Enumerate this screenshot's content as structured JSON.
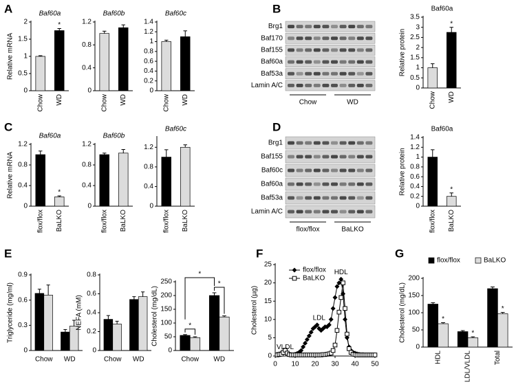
{
  "panel_labels": [
    "A",
    "B",
    "C",
    "D",
    "E",
    "F",
    "G"
  ],
  "blots": [
    {
      "rows": [
        "Brg1",
        "Baf170",
        "Baf155",
        "Baf60a",
        "Baf53a",
        "Lamin A/C"
      ],
      "groups": [
        "Chow",
        "WD"
      ]
    },
    {
      "rows": [
        "Brg1",
        "Baf155",
        "Baf60c",
        "Baf60a",
        "Baf53a",
        "Lamin A/C"
      ],
      "groups": [
        "flox/flox",
        "BaLKO"
      ]
    }
  ],
  "chart_data": [
    {
      "type": "bar",
      "title": "Baf60a",
      "ylabel": "Relative mRNA",
      "categories": [
        "Chow",
        "WD"
      ],
      "values": [
        1.0,
        1.75
      ],
      "errors": [
        0.02,
        0.06
      ],
      "colors": [
        "#dcdcdc",
        "#000000"
      ],
      "stars": [
        null,
        "*"
      ],
      "ylim": [
        0,
        2
      ],
      "yticks": [
        0,
        0.5,
        1,
        1.5,
        2
      ]
    },
    {
      "type": "bar",
      "title": "Baf60b",
      "categories": [
        "Chow",
        "WD"
      ],
      "values": [
        1.0,
        1.1
      ],
      "errors": [
        0.04,
        0.05
      ],
      "colors": [
        "#dcdcdc",
        "#000000"
      ],
      "ylim": [
        0,
        1.2
      ],
      "yticks": [
        0,
        0.4,
        0.8,
        1.2
      ]
    },
    {
      "type": "bar",
      "title": "Baf60c",
      "categories": [
        "Chow",
        "WD"
      ],
      "values": [
        1.0,
        1.1
      ],
      "errors": [
        0.03,
        0.12
      ],
      "colors": [
        "#dcdcdc",
        "#000000"
      ],
      "ylim": [
        0,
        1.4
      ],
      "yticks": [
        0,
        0.2,
        0.4,
        0.6,
        0.8,
        1,
        1.2,
        1.4
      ]
    },
    {
      "type": "bar",
      "title": "Baf60a",
      "ylabel": "Relative protein",
      "categories": [
        "Chow",
        "WD"
      ],
      "values": [
        1.0,
        2.75
      ],
      "errors": [
        0.2,
        0.25
      ],
      "colors": [
        "#dcdcdc",
        "#000000"
      ],
      "stars": [
        null,
        "*"
      ],
      "ylim": [
        0,
        3.5
      ],
      "yticks": [
        0,
        0.5,
        1,
        1.5,
        2,
        2.5,
        3,
        3.5
      ]
    },
    {
      "type": "bar",
      "title": "Baf60a",
      "ylabel": "Relative mRNA",
      "categories": [
        "flox/flox",
        "BaLKO"
      ],
      "values": [
        1.0,
        0.18
      ],
      "errors": [
        0.07,
        0.02
      ],
      "colors": [
        "#000000",
        "#dcdcdc"
      ],
      "stars": [
        null,
        "*"
      ],
      "ylim": [
        0,
        1.2
      ],
      "yticks": [
        0,
        0.4,
        0.8,
        1.2
      ]
    },
    {
      "type": "bar",
      "title": "Baf60b",
      "categories": [
        "flox/flox",
        "BaLKO"
      ],
      "values": [
        1.0,
        1.03
      ],
      "errors": [
        0.03,
        0.07
      ],
      "colors": [
        "#000000",
        "#dcdcdc"
      ],
      "ylim": [
        0,
        1.2
      ],
      "yticks": [
        0,
        0.4,
        0.8,
        1.2
      ]
    },
    {
      "type": "bar",
      "title": "Baf60c",
      "categories": [
        "flox/flox",
        "BaLKO"
      ],
      "values": [
        1.0,
        1.2
      ],
      "errors": [
        0.15,
        0.05
      ],
      "colors": [
        "#000000",
        "#dcdcdc"
      ],
      "ylim": [
        0,
        1.4
      ],
      "yticks": [
        0,
        0.4,
        0.8,
        1.2
      ]
    },
    {
      "type": "bar",
      "title": "Baf60a",
      "ylabel": "Relative protein",
      "categories": [
        "flox/flox",
        "BaLKO"
      ],
      "values": [
        1.0,
        0.2
      ],
      "errors": [
        0.15,
        0.07
      ],
      "colors": [
        "#000000",
        "#dcdcdc"
      ],
      "stars": [
        null,
        "*"
      ],
      "ylim": [
        0,
        1.4
      ],
      "yticks": [
        0,
        0.2,
        0.4,
        0.6,
        0.8,
        1,
        1.2,
        1.4
      ]
    },
    {
      "type": "bar",
      "ylabel": "Triglyceride (mg/ml)",
      "categories": [
        "Chow",
        "WD"
      ],
      "series": [
        {
          "color": "#000000",
          "values": [
            0.68,
            0.22
          ],
          "errors": [
            0.05,
            0.03
          ]
        },
        {
          "color": "#dcdcdc",
          "values": [
            0.66,
            0.29
          ],
          "errors": [
            0.12,
            0.07
          ]
        }
      ],
      "ylim": [
        0,
        0.9
      ],
      "yticks": [
        0,
        0.3,
        0.6,
        0.9
      ]
    },
    {
      "type": "bar",
      "ylabel": "NEFA (mM)",
      "categories": [
        "Chow",
        "WD"
      ],
      "series": [
        {
          "color": "#000000",
          "values": [
            0.33,
            0.54
          ],
          "errors": [
            0.04,
            0.03
          ]
        },
        {
          "color": "#dcdcdc",
          "values": [
            0.28,
            0.57
          ],
          "errors": [
            0.03,
            0.05
          ]
        }
      ],
      "ylim": [
        0,
        0.8
      ],
      "yticks": [
        0,
        0.2,
        0.4,
        0.6,
        0.8
      ]
    },
    {
      "type": "bar",
      "ylabel": "Cholesterol (mg/dL)",
      "categories": [
        "Chow",
        "WD"
      ],
      "series": [
        {
          "color": "#000000",
          "values": [
            55,
            200
          ],
          "errors": [
            3,
            10
          ]
        },
        {
          "color": "#dcdcdc",
          "values": [
            47,
            122
          ],
          "errors": [
            3,
            4
          ]
        }
      ],
      "annotations": [
        "*",
        "*",
        "*"
      ],
      "ylim": [
        0,
        250
      ],
      "yticks": [
        0,
        50,
        100,
        150,
        200,
        250
      ]
    },
    {
      "type": "line",
      "ylabel": "Cholesterol (µg)",
      "legend": "top-left",
      "annotations": [
        "VLDL",
        "LDL",
        "HDL"
      ],
      "x": [
        1,
        2,
        3,
        4,
        5,
        6,
        7,
        8,
        9,
        10,
        11,
        12,
        13,
        14,
        15,
        16,
        17,
        18,
        19,
        20,
        21,
        22,
        23,
        24,
        25,
        26,
        27,
        28,
        29,
        30,
        31,
        32,
        33,
        34,
        35,
        36,
        37,
        38,
        39,
        40,
        41,
        42,
        43,
        44,
        45,
        46,
        47,
        48,
        49,
        50
      ],
      "series": [
        {
          "name": "flox/flox",
          "color": "#000000",
          "marker": "diamond",
          "values": [
            0.5,
            0.6,
            0.8,
            1.0,
            1.5,
            1.0,
            0.5,
            0.4,
            0.4,
            0.5,
            0.7,
            1.0,
            1.5,
            2.5,
            3.5,
            4.5,
            5.5,
            6.5,
            7.5,
            8,
            8.5,
            7.5,
            7,
            7.5,
            8,
            8,
            8.5,
            10,
            13,
            16,
            19,
            20,
            21,
            17,
            10,
            5,
            2.5,
            1.5,
            1,
            0.8,
            0.6,
            0.5,
            0.4,
            0.4,
            0.3,
            0.3,
            0.3,
            0.3,
            0.3,
            0.3
          ]
        },
        {
          "name": "BaLKO",
          "color": "#000000",
          "marker": "open-square",
          "values": [
            0.3,
            0.4,
            0.5,
            1.0,
            1.6,
            0.8,
            0.4,
            0.3,
            0.3,
            0.3,
            0.3,
            0.3,
            0.3,
            0.3,
            0.3,
            0.3,
            0.3,
            0.3,
            0.3,
            0.3,
            0.3,
            0.3,
            0.3,
            0.4,
            0.4,
            0.5,
            0.6,
            0.8,
            1.5,
            3,
            7,
            12,
            16,
            20,
            13,
            6,
            2,
            1,
            0.5,
            0.4,
            0.3,
            0.3,
            0.3,
            0.3,
            0.3,
            0.3,
            0.3,
            0.3,
            0.3,
            0.3
          ]
        }
      ],
      "xlim": [
        0,
        50
      ],
      "xticks": [
        0,
        10,
        20,
        30,
        40,
        50
      ],
      "ylim": [
        0,
        25
      ],
      "yticks": [
        0,
        5,
        10,
        15,
        20,
        25
      ]
    },
    {
      "type": "bar",
      "ylabel": "Cholesterol (mg/dL)",
      "legend": "top",
      "categories": [
        "HDL",
        "LDL/VLDL",
        "Total"
      ],
      "series": [
        {
          "name": "flox/flox",
          "color": "#000000",
          "values": [
            125,
            45,
            170
          ],
          "errors": [
            4,
            3,
            5
          ]
        },
        {
          "name": "BaLKO",
          "color": "#dcdcdc",
          "values": [
            68,
            27,
            97
          ],
          "errors": [
            3,
            3,
            4
          ],
          "stars": [
            "*",
            "*",
            "*"
          ]
        }
      ],
      "ylim": [
        0,
        200
      ],
      "yticks": [
        0,
        50,
        100,
        150,
        200
      ]
    }
  ]
}
